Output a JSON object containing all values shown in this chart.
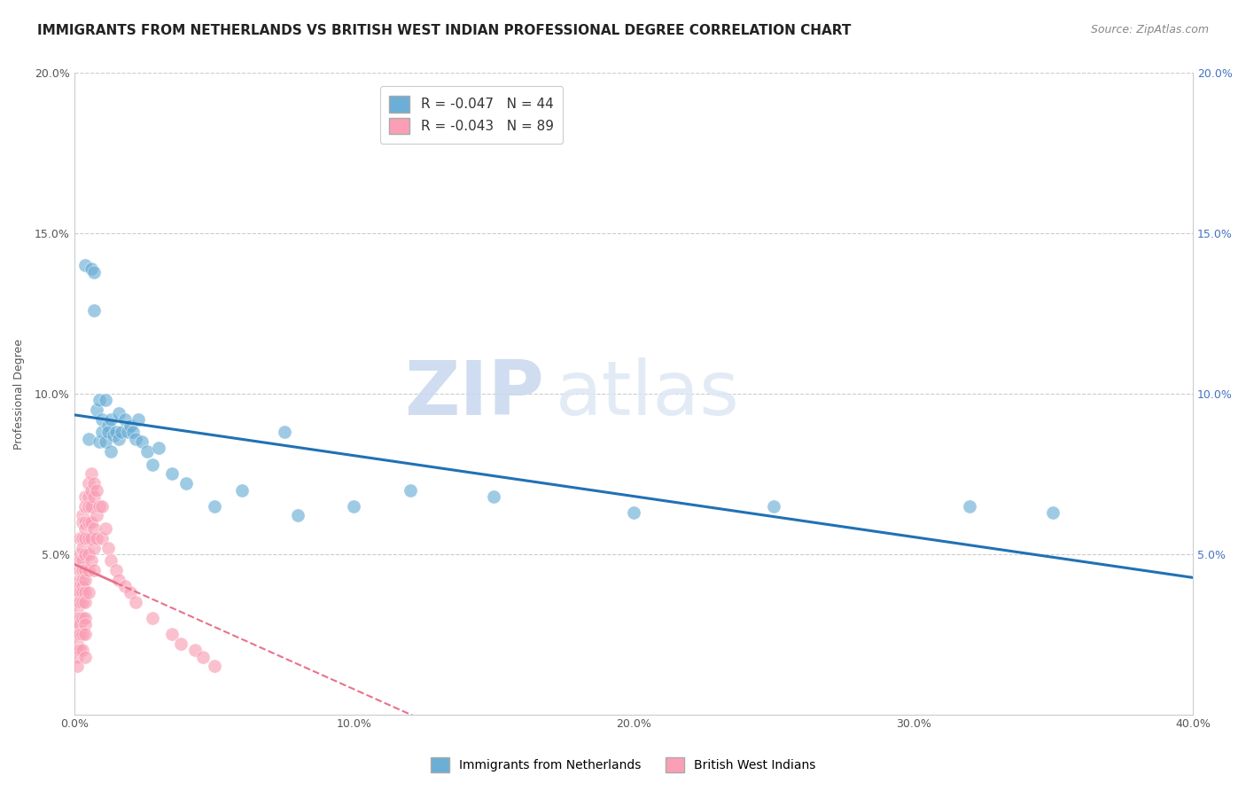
{
  "title": "IMMIGRANTS FROM NETHERLANDS VS BRITISH WEST INDIAN PROFESSIONAL DEGREE CORRELATION CHART",
  "source": "Source: ZipAtlas.com",
  "ylabel": "Professional Degree",
  "xlim": [
    0.0,
    0.4
  ],
  "ylim": [
    0.0,
    0.2
  ],
  "xticks": [
    0.0,
    0.1,
    0.2,
    0.3,
    0.4
  ],
  "xtick_labels": [
    "0.0%",
    "10.0%",
    "20.0%",
    "30.0%",
    "40.0%"
  ],
  "yticks_left": [
    0.0,
    0.05,
    0.1,
    0.15,
    0.2
  ],
  "ytick_labels_left": [
    "",
    "5.0%",
    "10.0%",
    "15.0%",
    "20.0%"
  ],
  "yticks_right": [
    0.05,
    0.1,
    0.15,
    0.2
  ],
  "ytick_labels_right": [
    "5.0%",
    "10.0%",
    "15.0%",
    "20.0%"
  ],
  "legend_label1": "Immigrants from Netherlands",
  "legend_label2": "British West Indians",
  "r1": "-0.047",
  "n1": "44",
  "r2": "-0.043",
  "n2": "89",
  "color1": "#6baed6",
  "color2": "#fa9fb5",
  "trendline1_color": "#2171b5",
  "trendline2_color": "#e8728a",
  "watermark_zip": "ZIP",
  "watermark_atlas": "atlas",
  "title_fontsize": 11,
  "source_fontsize": 9,
  "axis_label_fontsize": 9,
  "tick_fontsize": 9,
  "netherlands_x": [
    0.004,
    0.005,
    0.006,
    0.007,
    0.007,
    0.008,
    0.009,
    0.009,
    0.01,
    0.01,
    0.011,
    0.011,
    0.012,
    0.012,
    0.013,
    0.013,
    0.014,
    0.015,
    0.016,
    0.016,
    0.017,
    0.018,
    0.019,
    0.02,
    0.021,
    0.022,
    0.023,
    0.024,
    0.026,
    0.028,
    0.03,
    0.035,
    0.04,
    0.05,
    0.06,
    0.075,
    0.08,
    0.1,
    0.12,
    0.15,
    0.2,
    0.25,
    0.32,
    0.35
  ],
  "netherlands_y": [
    0.14,
    0.086,
    0.139,
    0.138,
    0.126,
    0.095,
    0.098,
    0.085,
    0.092,
    0.088,
    0.098,
    0.085,
    0.09,
    0.088,
    0.092,
    0.082,
    0.087,
    0.088,
    0.094,
    0.086,
    0.088,
    0.092,
    0.088,
    0.09,
    0.088,
    0.086,
    0.092,
    0.085,
    0.082,
    0.078,
    0.083,
    0.075,
    0.072,
    0.065,
    0.07,
    0.088,
    0.062,
    0.065,
    0.07,
    0.068,
    0.063,
    0.065,
    0.065,
    0.063
  ],
  "bwi_x": [
    0.001,
    0.001,
    0.001,
    0.001,
    0.001,
    0.001,
    0.001,
    0.001,
    0.001,
    0.001,
    0.001,
    0.002,
    0.002,
    0.002,
    0.002,
    0.002,
    0.002,
    0.002,
    0.002,
    0.002,
    0.002,
    0.002,
    0.002,
    0.003,
    0.003,
    0.003,
    0.003,
    0.003,
    0.003,
    0.003,
    0.003,
    0.003,
    0.003,
    0.003,
    0.003,
    0.003,
    0.004,
    0.004,
    0.004,
    0.004,
    0.004,
    0.004,
    0.004,
    0.004,
    0.004,
    0.004,
    0.004,
    0.004,
    0.004,
    0.004,
    0.005,
    0.005,
    0.005,
    0.005,
    0.005,
    0.005,
    0.005,
    0.005,
    0.006,
    0.006,
    0.006,
    0.006,
    0.006,
    0.006,
    0.007,
    0.007,
    0.007,
    0.007,
    0.007,
    0.008,
    0.008,
    0.008,
    0.009,
    0.01,
    0.01,
    0.011,
    0.012,
    0.013,
    0.015,
    0.016,
    0.018,
    0.02,
    0.022,
    0.028,
    0.035,
    0.038,
    0.043,
    0.046,
    0.05
  ],
  "bwi_y": [
    0.04,
    0.038,
    0.035,
    0.033,
    0.03,
    0.028,
    0.025,
    0.022,
    0.02,
    0.018,
    0.015,
    0.055,
    0.05,
    0.048,
    0.045,
    0.042,
    0.04,
    0.038,
    0.035,
    0.03,
    0.028,
    0.025,
    0.02,
    0.062,
    0.06,
    0.055,
    0.052,
    0.048,
    0.045,
    0.042,
    0.04,
    0.038,
    0.035,
    0.03,
    0.025,
    0.02,
    0.068,
    0.065,
    0.06,
    0.058,
    0.055,
    0.05,
    0.045,
    0.042,
    0.038,
    0.035,
    0.03,
    0.028,
    0.025,
    0.018,
    0.072,
    0.068,
    0.065,
    0.06,
    0.055,
    0.05,
    0.045,
    0.038,
    0.075,
    0.07,
    0.065,
    0.06,
    0.055,
    0.048,
    0.072,
    0.068,
    0.058,
    0.052,
    0.045,
    0.07,
    0.062,
    0.055,
    0.065,
    0.065,
    0.055,
    0.058,
    0.052,
    0.048,
    0.045,
    0.042,
    0.04,
    0.038,
    0.035,
    0.03,
    0.025,
    0.022,
    0.02,
    0.018,
    0.015
  ]
}
